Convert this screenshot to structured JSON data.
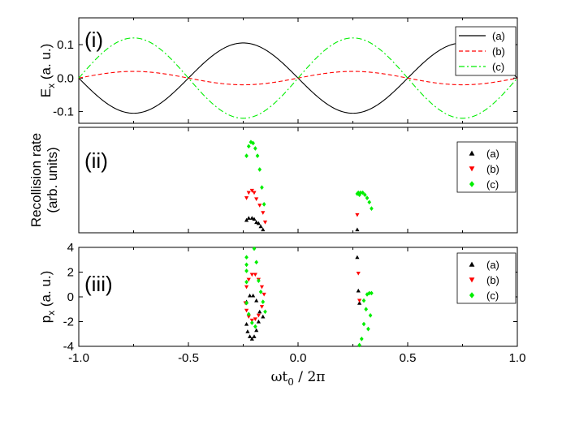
{
  "chart_data": [
    {
      "type": "line",
      "panel_label": "(i)",
      "ylabel": "E",
      "ylabel_sub": "x",
      "ylabel_unit": " (a. u.)",
      "xlim": [
        -1.0,
        1.0
      ],
      "ylim": [
        -0.135,
        0.18
      ],
      "yticks": [
        -0.1,
        0.0,
        0.1
      ],
      "ytick_labels": [
        "-0.1",
        "0.0",
        "0.1"
      ],
      "series": [
        {
          "name": "(a)",
          "color": "#000000",
          "dash": "solid",
          "amplitude": 0.105,
          "phase_shift": 0.0
        },
        {
          "name": "(b)",
          "color": "#ff0000",
          "dash": "dashed",
          "amplitude": 0.02,
          "phase_shift": 0.5
        },
        {
          "name": "(c)",
          "color": "#00ee00",
          "dash": "dashdot",
          "amplitude": 0.12,
          "phase_shift": 0.5
        }
      ]
    },
    {
      "type": "scatter",
      "panel_label": "(ii)",
      "ylabel_line1": "Recollision rate",
      "ylabel_line2": "(arb. units)",
      "xlim": [
        -1.0,
        1.0
      ],
      "ylim": [
        0,
        1
      ],
      "series": [
        {
          "name": "(a)",
          "color": "#000000",
          "marker": "triangle-up",
          "points": [
            [
              -0.235,
              0.12
            ],
            [
              -0.225,
              0.14
            ],
            [
              -0.21,
              0.14
            ],
            [
              -0.2,
              0.13
            ],
            [
              -0.19,
              0.1
            ],
            [
              -0.18,
              0.09
            ],
            [
              -0.17,
              0.06
            ],
            [
              -0.16,
              0.03
            ],
            [
              0.27,
              0.03
            ]
          ]
        },
        {
          "name": "(b)",
          "color": "#ff0000",
          "marker": "triangle-down",
          "points": [
            [
              -0.235,
              0.33
            ],
            [
              -0.225,
              0.38
            ],
            [
              -0.21,
              0.4
            ],
            [
              -0.2,
              0.38
            ],
            [
              -0.19,
              0.32
            ],
            [
              -0.175,
              0.26
            ],
            [
              -0.16,
              0.19
            ],
            [
              -0.15,
              0.1
            ],
            [
              0.27,
              0.17
            ]
          ]
        },
        {
          "name": "(c)",
          "color": "#00ee00",
          "marker": "diamond",
          "points": [
            [
              -0.235,
              0.73
            ],
            [
              -0.225,
              0.82
            ],
            [
              -0.215,
              0.86
            ],
            [
              -0.205,
              0.85
            ],
            [
              -0.195,
              0.8
            ],
            [
              -0.185,
              0.73
            ],
            [
              -0.175,
              0.6
            ],
            [
              -0.165,
              0.43
            ],
            [
              -0.155,
              0.27
            ],
            [
              0.275,
              0.38
            ],
            [
              0.285,
              0.38
            ],
            [
              0.295,
              0.38
            ],
            [
              0.305,
              0.36
            ],
            [
              0.315,
              0.33
            ],
            [
              0.325,
              0.29
            ],
            [
              0.335,
              0.23
            ],
            [
              0.27,
              0.37
            ],
            [
              0.28,
              0.36
            ]
          ]
        }
      ]
    },
    {
      "type": "scatter",
      "panel_label": "(iii)",
      "ylabel": "p",
      "ylabel_sub": "x",
      "ylabel_unit": " (a. u.)",
      "xlabel": "ωt",
      "xlabel_sub": "0",
      "xlabel_rest": " / 2π",
      "xlim": [
        -1.0,
        1.0
      ],
      "ylim": [
        -4,
        4
      ],
      "yticks": [
        -4,
        -2,
        0,
        2,
        4
      ],
      "ytick_labels": [
        "-4",
        "-2",
        "0",
        "2",
        "4"
      ],
      "xticks": [
        -1.0,
        -0.5,
        0.0,
        0.5,
        1.0
      ],
      "xtick_labels": [
        "-1.0",
        "-0.5",
        "0.0",
        "0.5",
        "1.0"
      ],
      "series": [
        {
          "name": "(a)",
          "color": "#000000",
          "marker": "triangle-up",
          "points": [
            [
              -0.235,
              -2.2
            ],
            [
              -0.23,
              -2.8
            ],
            [
              -0.22,
              -3.2
            ],
            [
              -0.21,
              -3.4
            ],
            [
              -0.2,
              -3.2
            ],
            [
              -0.19,
              -2.7
            ],
            [
              -0.18,
              -2.0
            ],
            [
              -0.235,
              -0.4
            ],
            [
              -0.22,
              0.1
            ],
            [
              -0.205,
              0.1
            ],
            [
              -0.19,
              -0.3
            ],
            [
              -0.175,
              -1.2
            ],
            [
              -0.16,
              -1.6
            ],
            [
              0.27,
              3.2
            ],
            [
              0.275,
              0.5
            ],
            [
              0.28,
              -0.5
            ]
          ]
        },
        {
          "name": "(b)",
          "color": "#ff0000",
          "marker": "triangle-down",
          "points": [
            [
              -0.24,
              -0.5
            ],
            [
              -0.235,
              -1.1
            ],
            [
              -0.225,
              -1.6
            ],
            [
              -0.21,
              -1.9
            ],
            [
              -0.195,
              -1.8
            ],
            [
              -0.18,
              -1.5
            ],
            [
              -0.165,
              -0.8
            ],
            [
              -0.235,
              0.8
            ],
            [
              -0.225,
              1.4
            ],
            [
              -0.21,
              1.8
            ],
            [
              -0.195,
              1.8
            ],
            [
              -0.18,
              1.4
            ],
            [
              -0.165,
              0.8
            ],
            [
              -0.155,
              0.2
            ],
            [
              0.275,
              1.9
            ],
            [
              0.28,
              -0.3
            ]
          ]
        },
        {
          "name": "(c)",
          "color": "#00ee00",
          "marker": "diamond",
          "points": [
            [
              -0.235,
              3.2
            ],
            [
              -0.235,
              2.6
            ],
            [
              -0.235,
              2.1
            ],
            [
              -0.235,
              1.2
            ],
            [
              -0.235,
              -0.5
            ],
            [
              -0.225,
              -1.4
            ],
            [
              -0.21,
              -2.1
            ],
            [
              -0.195,
              -2.4
            ],
            [
              -0.2,
              3.9
            ],
            [
              -0.19,
              2.8
            ],
            [
              -0.18,
              1.3
            ],
            [
              -0.17,
              0.4
            ],
            [
              -0.16,
              -0.4
            ],
            [
              -0.15,
              -1.2
            ],
            [
              0.28,
              -3.9
            ],
            [
              0.29,
              -3.4
            ],
            [
              0.3,
              -2.2
            ],
            [
              0.31,
              -1.0
            ],
            [
              0.315,
              0.2
            ],
            [
              0.325,
              0.3
            ],
            [
              0.335,
              0.3
            ],
            [
              0.33,
              -1.5
            ],
            [
              0.32,
              -2.6
            ],
            [
              0.3,
              -0.3
            ]
          ]
        }
      ]
    }
  ]
}
